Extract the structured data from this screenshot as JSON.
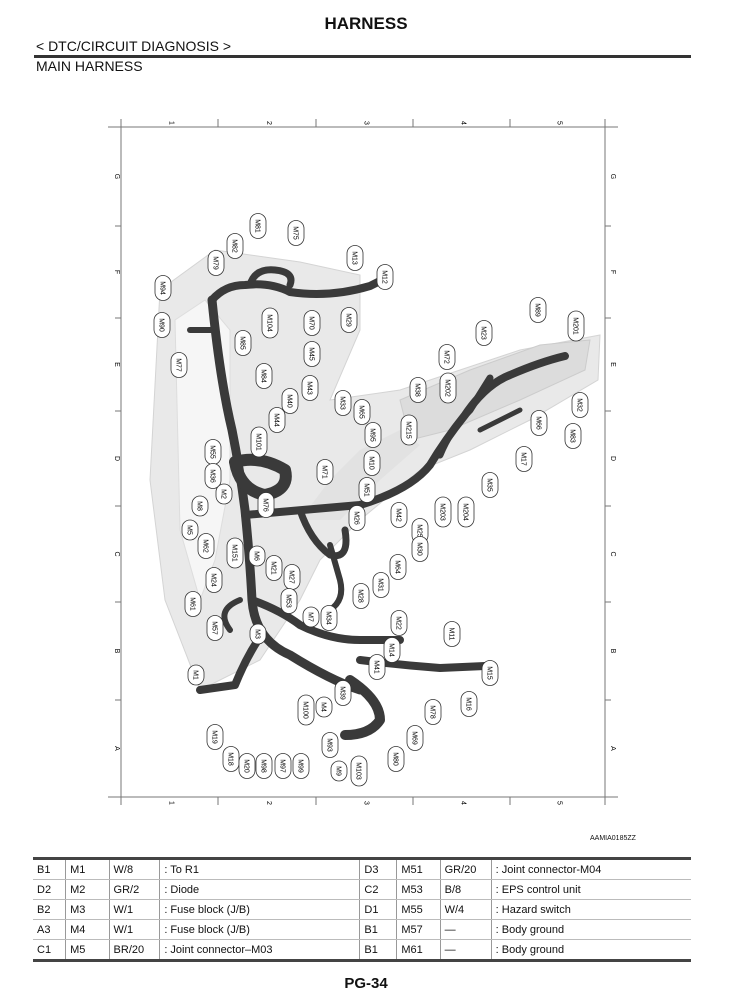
{
  "header": {
    "title": "HARNESS",
    "section": "< DTC/CIRCUIT DIAGNOSIS >",
    "subtitle": "MAIN HARNESS"
  },
  "diagram": {
    "columns": [
      "1",
      "2",
      "3",
      "4",
      "5"
    ],
    "rows": [
      "G",
      "F",
      "E",
      "D",
      "C",
      "B",
      "A"
    ],
    "figure_id": "AAMIA0185ZZ",
    "connectors": [
      "M81",
      "M75",
      "M82",
      "M79",
      "M13",
      "M12",
      "M94",
      "M90",
      "M104",
      "M70",
      "M29",
      "M85",
      "M45",
      "M77",
      "M84",
      "M43",
      "M40",
      "M33",
      "M44",
      "M65",
      "M38",
      "M202",
      "M72",
      "M23",
      "M89",
      "M201",
      "M32",
      "M83",
      "M66",
      "M17",
      "M35",
      "M215",
      "M203",
      "M204",
      "M101",
      "M55",
      "M95",
      "M36",
      "M10",
      "M71",
      "M2",
      "M51",
      "M8",
      "M76",
      "M26",
      "M42",
      "M5",
      "M25",
      "M62",
      "M151",
      "M6",
      "M30",
      "M21",
      "M27",
      "M64",
      "M31",
      "M24",
      "M28",
      "M61",
      "M53",
      "M7",
      "M34",
      "M57",
      "M22",
      "M3",
      "M11",
      "M14",
      "M41",
      "M1",
      "M15",
      "M39",
      "M16",
      "M100",
      "M4",
      "M78",
      "M19",
      "M69",
      "M93",
      "M18",
      "M20",
      "M98",
      "M97",
      "M99",
      "M9",
      "M103",
      "M80"
    ]
  },
  "table": {
    "rows": [
      [
        "B1",
        "M1",
        "W/8",
        ": To R1",
        "D3",
        "M51",
        "GR/20",
        ": Joint connector-M04"
      ],
      [
        "D2",
        "M2",
        "GR/2",
        ": Diode",
        "C2",
        "M53",
        "B/8",
        ": EPS control unit"
      ],
      [
        "B2",
        "M3",
        "W/1",
        ": Fuse block (J/B)",
        "D1",
        "M55",
        "W/4",
        ": Hazard switch"
      ],
      [
        "A3",
        "M4",
        "W/1",
        ": Fuse block (J/B)",
        "B1",
        "M57",
        "—",
        ": Body ground"
      ],
      [
        "C1",
        "M5",
        "BR/20",
        ": Joint connector–M03",
        "B1",
        "M61",
        "—",
        ": Body ground"
      ]
    ]
  },
  "footer": {
    "page": "PG-34"
  }
}
